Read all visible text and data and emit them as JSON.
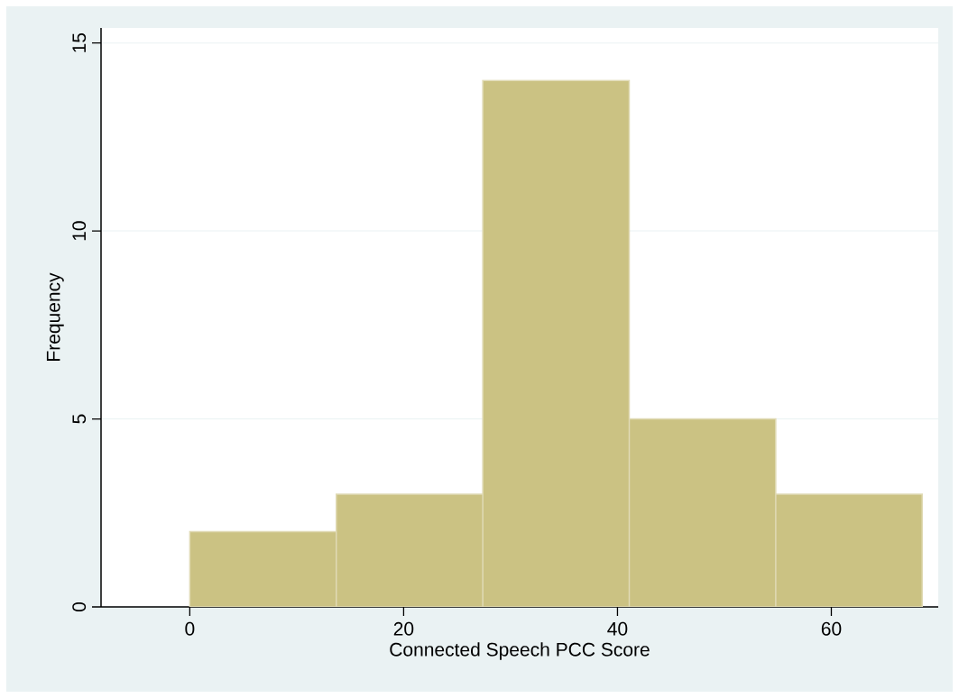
{
  "chart_data": {
    "type": "histogram",
    "xlabel": "Connected Speech PCC Score",
    "ylabel": "Frequency",
    "bins": [
      0,
      13.7,
      27.4,
      41.1,
      54.8,
      68.5
    ],
    "values": [
      2,
      3,
      14,
      5,
      3
    ],
    "color": "#cbc283",
    "xlim": [
      -8.3,
      70
    ],
    "ylim": [
      0,
      15.4
    ],
    "xticks": [
      0,
      20,
      40,
      60
    ],
    "yticks": [
      0,
      5,
      10,
      15
    ],
    "grid": "y"
  }
}
